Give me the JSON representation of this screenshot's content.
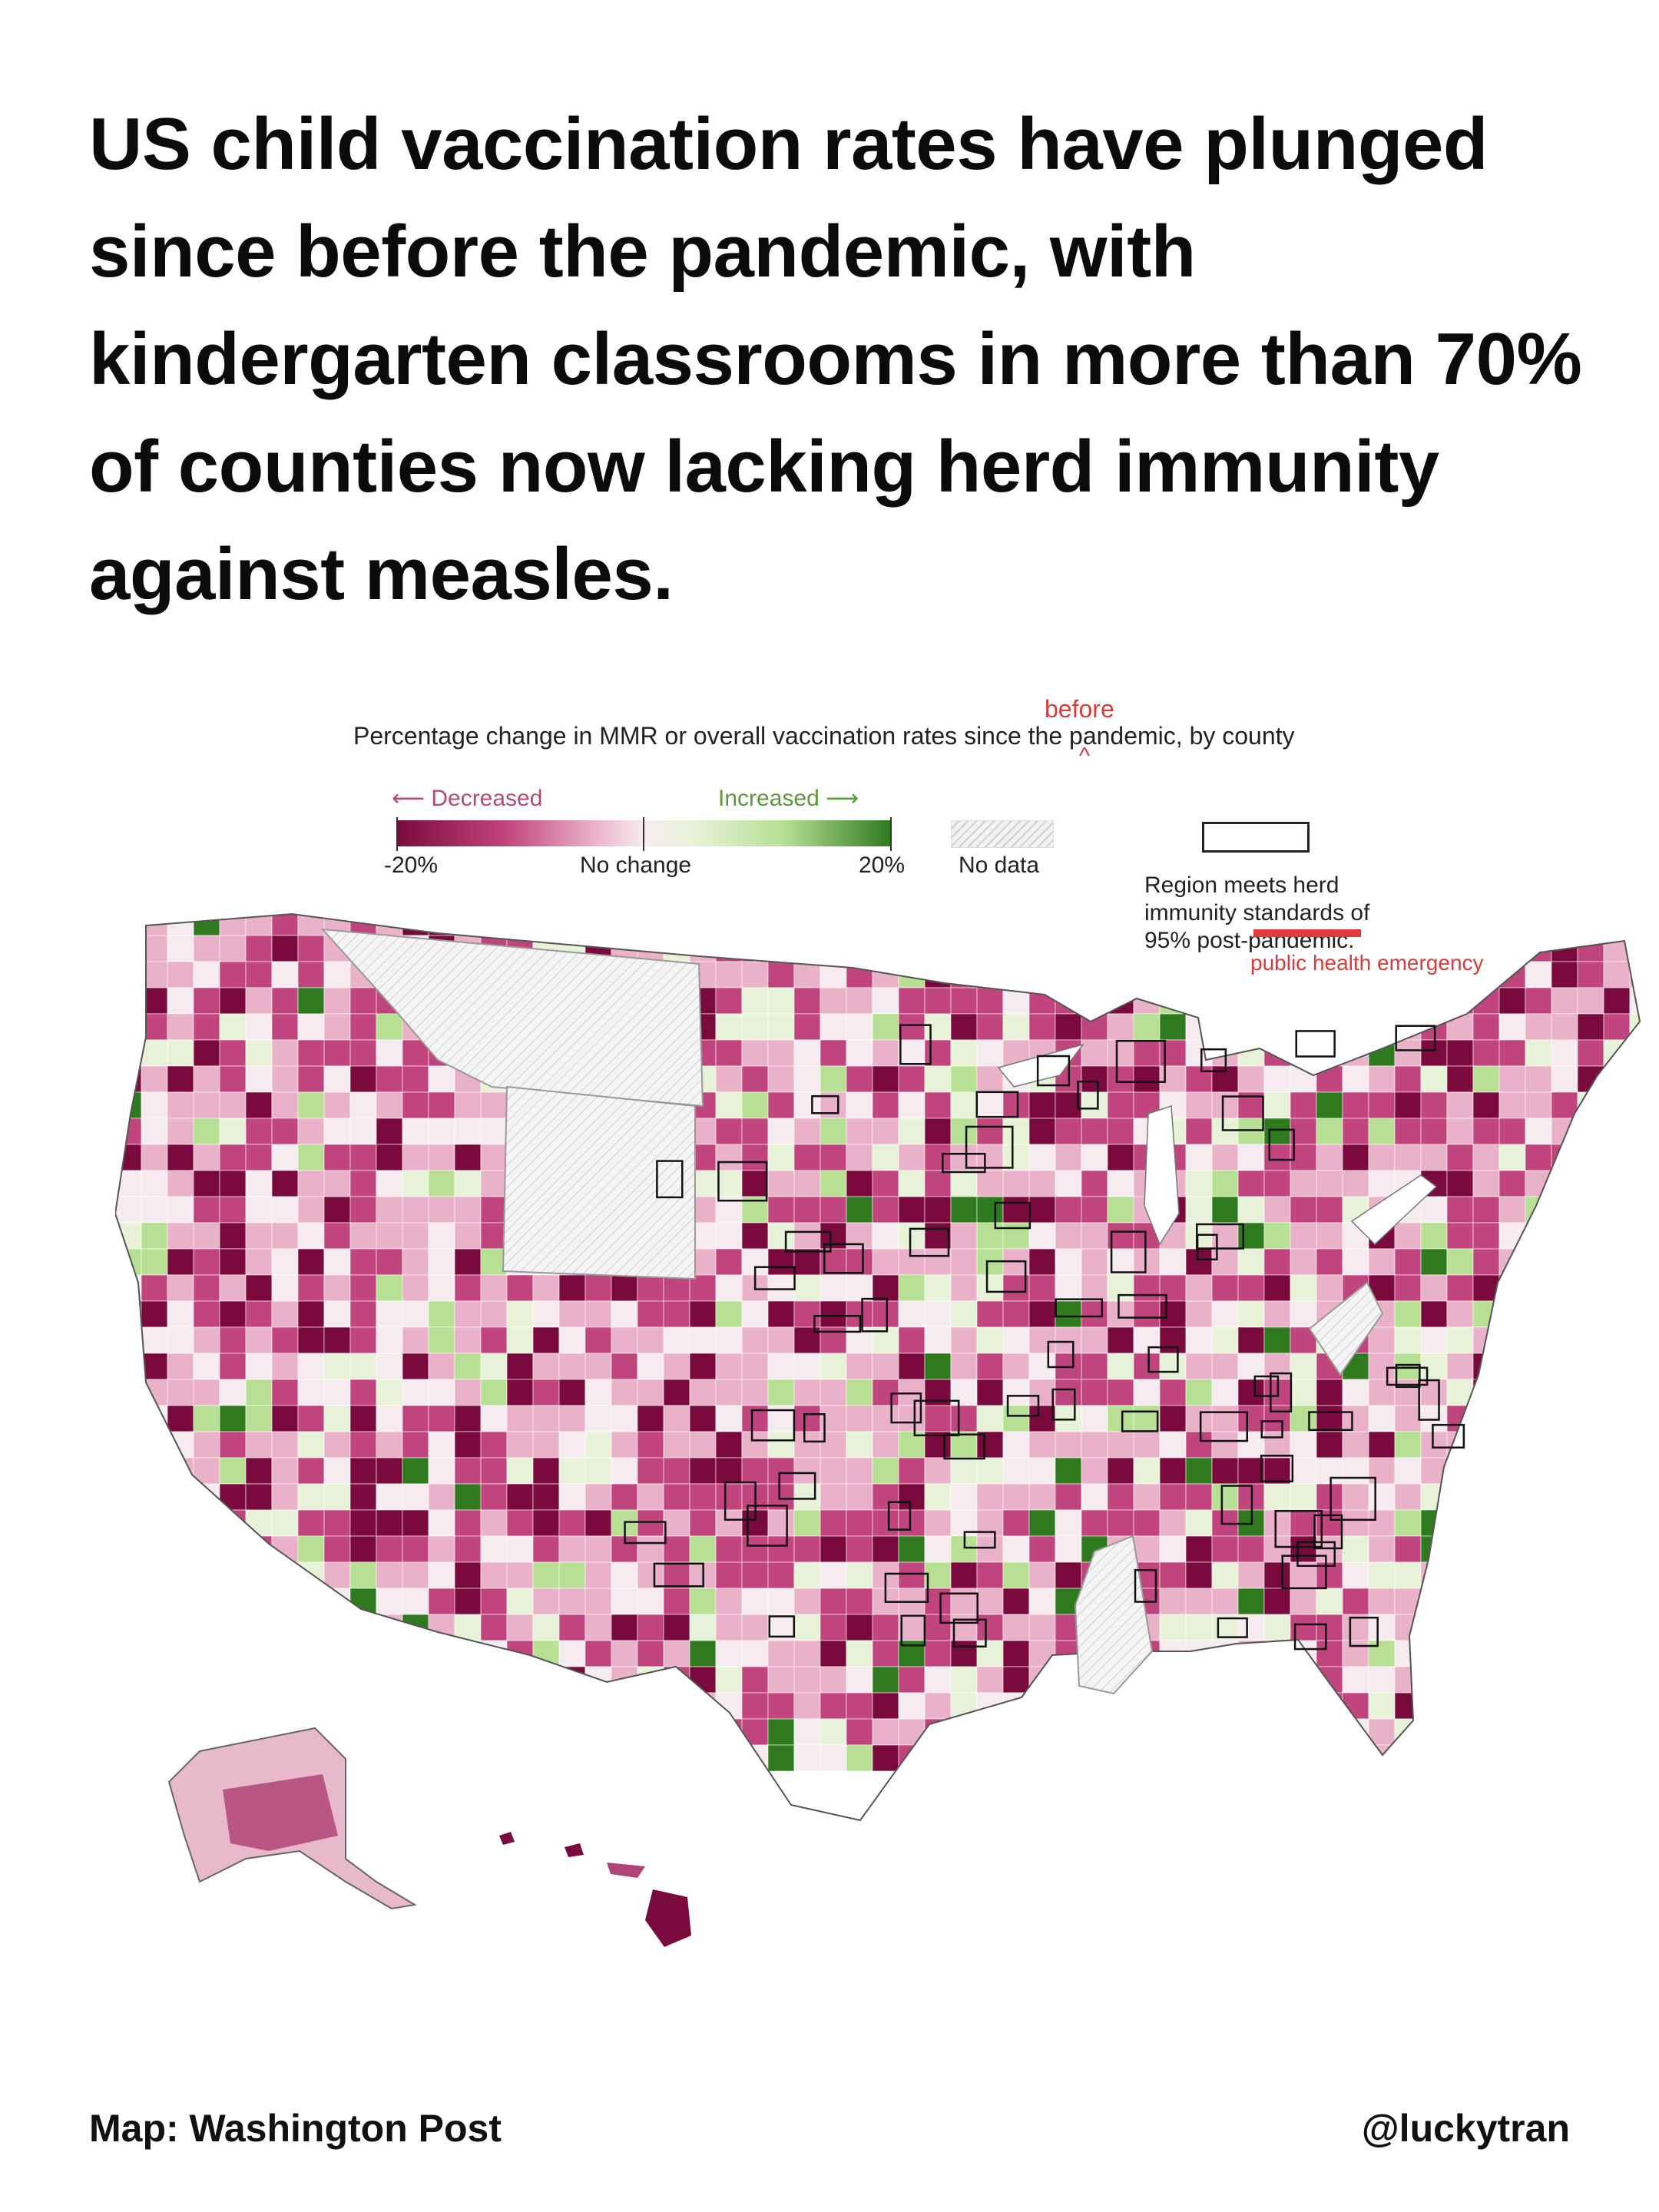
{
  "headline": "US child vaccination rates have plunged since before the pandemic, with kindergarten classrooms in more than 70% of counties now lacking herd immunity against measles.",
  "legend": {
    "title": "Percentage change in MMR or overall vaccination rates since the pandemic, by county",
    "inserted_word": "before",
    "caret": "^",
    "decreased": "⟵ Decreased",
    "increased": "Increased ⟶",
    "min_label": "-20%",
    "mid_label": "No change",
    "max_label": "20%",
    "no_data": "No data",
    "herd_line1": "Region meets herd",
    "herd_line2": "immunity standards of",
    "herd_line3": "95% post-pandemic.",
    "herd_correction": "public health emergency"
  },
  "colors": {
    "strong_decrease": "#7a0a3d",
    "decrease": "#c0447d",
    "slight_decrease": "#eab2c9",
    "no_change": "#f6ecef",
    "slight_increase": "#e7f2d8",
    "increase": "#b7e094",
    "strong_increase": "#2f7a1f",
    "annotation_red": "#d93a3a"
  },
  "footer": {
    "credit": "Map: Washington Post",
    "handle": "@luckytran"
  }
}
